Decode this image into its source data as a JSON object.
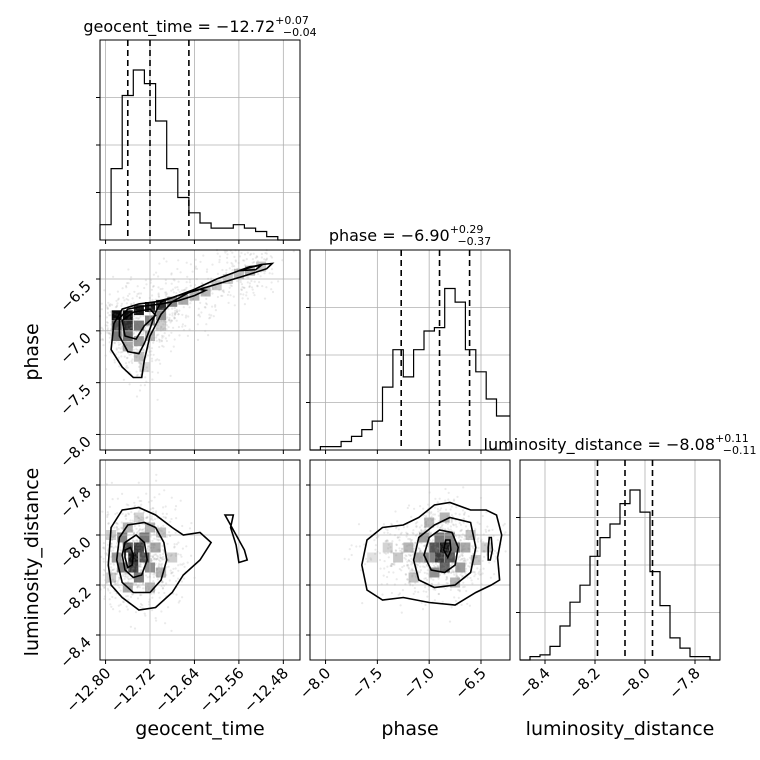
{
  "chart_data": {
    "type": "corner",
    "parameters": [
      "geocent_time",
      "phase",
      "luminosity_distance"
    ],
    "axis_labels": [
      "geocent_time",
      "phase",
      "luminosity_distance"
    ],
    "ranges": {
      "geocent_time": [
        -12.81,
        -12.45
      ],
      "phase": [
        -8.15,
        -6.22
      ],
      "luminosity_distance": [
        -8.5,
        -7.7
      ]
    },
    "ticks": {
      "geocent_time": [
        -12.8,
        -12.72,
        -12.64,
        -12.56,
        -12.48
      ],
      "phase": [
        -8.0,
        -7.5,
        -7.0,
        -6.5
      ],
      "luminosity_distance": [
        -8.4,
        -8.2,
        -8.0,
        -7.8
      ]
    },
    "tick_labels": {
      "geocent_time": [
        "−12.80",
        "−12.72",
        "−12.64",
        "−12.56",
        "−12.48"
      ],
      "phase": [
        "−8.0",
        "−7.5",
        "−7.0",
        "−6.5"
      ],
      "luminosity_distance": [
        "−8.4",
        "−8.2",
        "−8.0",
        "−7.8"
      ]
    },
    "titles": [
      {
        "param": "geocent_time",
        "prefix": "geocent_time = −12.72",
        "plus": "+0.07",
        "minus": "−0.04"
      },
      {
        "param": "phase",
        "prefix": "phase = −6.90",
        "plus": "+0.29",
        "minus": "−0.37"
      },
      {
        "param": "luminosity_distance",
        "prefix": "luminosity_distance = −8.08",
        "plus": "+0.11",
        "minus": "−0.11"
      }
    ],
    "quantiles": {
      "geocent_time": [
        -12.76,
        -12.72,
        -12.65
      ],
      "phase": [
        -7.27,
        -6.9,
        -6.61
      ],
      "luminosity_distance": [
        -8.19,
        -8.08,
        -7.97
      ]
    },
    "histograms": {
      "geocent_time": {
        "edges": [
          -12.81,
          -12.79,
          -12.77,
          -12.75,
          -12.73,
          -12.71,
          -12.69,
          -12.67,
          -12.65,
          -12.63,
          -12.61,
          -12.59,
          -12.57,
          -12.55,
          -12.53,
          -12.51,
          -12.49,
          -12.47,
          -12.45
        ],
        "counts": [
          0.09,
          0.42,
          0.85,
          1.0,
          0.92,
          0.7,
          0.42,
          0.25,
          0.16,
          0.1,
          0.07,
          0.07,
          0.09,
          0.07,
          0.05,
          0.02,
          0.0,
          0.0
        ]
      },
      "phase": {
        "edges": [
          -8.15,
          -8.05,
          -7.95,
          -7.85,
          -7.75,
          -7.65,
          -7.55,
          -7.45,
          -7.35,
          -7.25,
          -7.15,
          -7.05,
          -6.95,
          -6.85,
          -6.75,
          -6.65,
          -6.55,
          -6.45,
          -6.35,
          -6.22
        ],
        "counts": [
          0.0,
          0.02,
          0.02,
          0.05,
          0.08,
          0.12,
          0.17,
          0.37,
          0.59,
          0.43,
          0.59,
          0.7,
          0.72,
          0.95,
          0.87,
          0.59,
          0.46,
          0.3,
          0.2
        ]
      },
      "luminosity_distance": {
        "edges": [
          -8.5,
          -8.46,
          -8.42,
          -8.38,
          -8.34,
          -8.3,
          -8.26,
          -8.22,
          -8.18,
          -8.14,
          -8.1,
          -8.06,
          -8.02,
          -7.98,
          -7.94,
          -7.9,
          -7.86,
          -7.82,
          -7.78,
          -7.74,
          -7.7
        ],
        "counts": [
          0.0,
          0.02,
          0.03,
          0.08,
          0.2,
          0.34,
          0.44,
          0.61,
          0.72,
          0.8,
          0.92,
          1.0,
          0.87,
          0.52,
          0.32,
          0.13,
          0.07,
          0.02,
          0.02,
          0.0
        ]
      }
    },
    "contours": {
      "phase_vs_geocent_time": [
        [
          [
            -12.79,
            -7.18
          ],
          [
            -12.785,
            -6.93
          ],
          [
            -12.77,
            -6.79
          ],
          [
            -12.74,
            -6.74
          ],
          [
            -12.71,
            -6.72
          ],
          [
            -12.68,
            -6.68
          ],
          [
            -12.64,
            -6.6
          ],
          [
            -12.6,
            -6.5
          ],
          [
            -12.56,
            -6.42
          ],
          [
            -12.52,
            -6.36
          ],
          [
            -12.5,
            -6.35
          ],
          [
            -12.51,
            -6.4
          ],
          [
            -12.55,
            -6.47
          ],
          [
            -12.6,
            -6.55
          ],
          [
            -12.65,
            -6.63
          ],
          [
            -12.68,
            -6.72
          ],
          [
            -12.7,
            -6.84
          ],
          [
            -12.72,
            -7.05
          ],
          [
            -12.73,
            -7.28
          ],
          [
            -12.735,
            -7.45
          ],
          [
            -12.75,
            -7.45
          ],
          [
            -12.77,
            -7.35
          ]
        ],
        [
          [
            -12.775,
            -7.05
          ],
          [
            -12.775,
            -6.88
          ],
          [
            -12.76,
            -6.79
          ],
          [
            -12.73,
            -6.76
          ],
          [
            -12.7,
            -6.74
          ],
          [
            -12.67,
            -6.71
          ],
          [
            -12.64,
            -6.66
          ],
          [
            -12.62,
            -6.61
          ],
          [
            -12.63,
            -6.6
          ],
          [
            -12.67,
            -6.66
          ],
          [
            -12.7,
            -6.72
          ],
          [
            -12.71,
            -6.82
          ],
          [
            -12.72,
            -6.98
          ],
          [
            -12.73,
            -7.12
          ],
          [
            -12.74,
            -7.22
          ],
          [
            -12.76,
            -7.2
          ]
        ],
        [
          [
            -12.765,
            -7.05
          ],
          [
            -12.77,
            -6.9
          ],
          [
            -12.75,
            -6.82
          ],
          [
            -12.72,
            -6.79
          ],
          [
            -12.71,
            -6.85
          ],
          [
            -12.73,
            -6.95
          ],
          [
            -12.745,
            -7.08
          ]
        ],
        [
          [
            -12.56,
            -6.42
          ],
          [
            -12.54,
            -6.38
          ],
          [
            -12.52,
            -6.37
          ],
          [
            -12.53,
            -6.41
          ]
        ]
      ],
      "luminosity_distance_vs_geocent_time": [
        [
          [
            -12.795,
            -8.12
          ],
          [
            -12.79,
            -7.97
          ],
          [
            -12.77,
            -7.9
          ],
          [
            -12.74,
            -7.89
          ],
          [
            -12.71,
            -7.92
          ],
          [
            -12.68,
            -7.97
          ],
          [
            -12.66,
            -8.0
          ],
          [
            -12.63,
            -7.99
          ],
          [
            -12.61,
            -8.03
          ],
          [
            -12.63,
            -8.1
          ],
          [
            -12.66,
            -8.16
          ],
          [
            -12.68,
            -8.23
          ],
          [
            -12.71,
            -8.29
          ],
          [
            -12.74,
            -8.3
          ],
          [
            -12.77,
            -8.25
          ],
          [
            -12.79,
            -8.2
          ]
        ],
        [
          [
            -12.78,
            -8.1
          ],
          [
            -12.775,
            -8.01
          ],
          [
            -12.76,
            -7.96
          ],
          [
            -12.73,
            -7.95
          ],
          [
            -12.71,
            -7.97
          ],
          [
            -12.695,
            -8.03
          ],
          [
            -12.69,
            -8.1
          ],
          [
            -12.7,
            -8.18
          ],
          [
            -12.72,
            -8.23
          ],
          [
            -12.75,
            -8.23
          ],
          [
            -12.77,
            -8.19
          ]
        ],
        [
          [
            -12.77,
            -8.08
          ],
          [
            -12.765,
            -8.03
          ],
          [
            -12.745,
            -8.0
          ],
          [
            -12.73,
            -8.03
          ],
          [
            -12.725,
            -8.1
          ],
          [
            -12.735,
            -8.16
          ],
          [
            -12.75,
            -8.17
          ],
          [
            -12.765,
            -8.14
          ]
        ],
        [
          [
            -12.765,
            -8.09
          ],
          [
            -12.765,
            -8.06
          ],
          [
            -12.755,
            -8.05
          ],
          [
            -12.75,
            -8.08
          ],
          [
            -12.752,
            -8.12
          ],
          [
            -12.76,
            -8.13
          ]
        ],
        [
          [
            -12.585,
            -7.92
          ],
          [
            -12.565,
            -8.0
          ],
          [
            -12.55,
            -8.06
          ],
          [
            -12.545,
            -8.1
          ],
          [
            -12.56,
            -8.11
          ],
          [
            -12.565,
            -8.04
          ],
          [
            -12.575,
            -7.97
          ],
          [
            -12.57,
            -7.92
          ]
        ]
      ],
      "luminosity_distance_vs_phase": [
        [
          [
            -7.65,
            -8.12
          ],
          [
            -7.6,
            -8.02
          ],
          [
            -7.45,
            -7.97
          ],
          [
            -7.25,
            -7.96
          ],
          [
            -7.1,
            -7.93
          ],
          [
            -6.95,
            -7.88
          ],
          [
            -6.8,
            -7.87
          ],
          [
            -6.6,
            -7.9
          ],
          [
            -6.45,
            -7.9
          ],
          [
            -6.35,
            -7.92
          ],
          [
            -6.3,
            -8.0
          ],
          [
            -6.34,
            -8.09
          ],
          [
            -6.32,
            -8.18
          ],
          [
            -6.4,
            -8.2
          ],
          [
            -6.55,
            -8.23
          ],
          [
            -6.75,
            -8.28
          ],
          [
            -7.0,
            -8.27
          ],
          [
            -7.25,
            -8.25
          ],
          [
            -7.45,
            -8.26
          ],
          [
            -7.6,
            -8.22
          ]
        ],
        [
          [
            -7.15,
            -8.1
          ],
          [
            -7.1,
            -8.01
          ],
          [
            -6.95,
            -7.96
          ],
          [
            -6.8,
            -7.93
          ],
          [
            -6.6,
            -7.95
          ],
          [
            -6.55,
            -8.05
          ],
          [
            -6.6,
            -8.15
          ],
          [
            -6.75,
            -8.2
          ],
          [
            -6.95,
            -8.21
          ],
          [
            -7.1,
            -8.18
          ]
        ],
        [
          [
            -7.05,
            -8.08
          ],
          [
            -7.0,
            -8.01
          ],
          [
            -6.9,
            -7.98
          ],
          [
            -6.78,
            -7.99
          ],
          [
            -6.72,
            -8.05
          ],
          [
            -6.75,
            -8.12
          ],
          [
            -6.85,
            -8.15
          ],
          [
            -6.98,
            -8.14
          ]
        ],
        [
          [
            -6.86,
            -8.06
          ],
          [
            -6.84,
            -8.02
          ],
          [
            -6.8,
            -8.02
          ],
          [
            -6.79,
            -8.06
          ],
          [
            -6.82,
            -8.09
          ]
        ],
        [
          [
            -6.43,
            -8.05
          ],
          [
            -6.42,
            -8.01
          ],
          [
            -6.4,
            -8.01
          ],
          [
            -6.39,
            -8.06
          ],
          [
            -6.41,
            -8.1
          ],
          [
            -6.43,
            -8.1
          ]
        ]
      ]
    },
    "density_cells": {
      "phase_vs_geocent_time": [
        [
          -12.78,
          -6.85,
          1.0
        ],
        [
          -12.76,
          -6.85,
          1.0
        ],
        [
          -12.74,
          -6.8,
          0.95
        ],
        [
          -12.72,
          -6.77,
          0.95
        ],
        [
          -12.7,
          -6.75,
          0.85
        ],
        [
          -12.78,
          -6.95,
          0.7
        ],
        [
          -12.76,
          -6.95,
          0.85
        ],
        [
          -12.74,
          -6.95,
          0.55
        ],
        [
          -12.72,
          -6.9,
          0.5
        ],
        [
          -12.7,
          -6.85,
          0.45
        ],
        [
          -12.78,
          -7.05,
          0.55
        ],
        [
          -12.76,
          -7.05,
          0.6
        ],
        [
          -12.74,
          -7.1,
          0.4
        ],
        [
          -12.72,
          -7.05,
          0.3
        ],
        [
          -12.68,
          -6.72,
          0.5
        ],
        [
          -12.76,
          -7.15,
          0.35
        ],
        [
          -12.74,
          -7.25,
          0.25
        ],
        [
          -12.66,
          -6.7,
          0.35
        ],
        [
          -12.64,
          -6.66,
          0.3
        ],
        [
          -12.62,
          -6.62,
          0.3
        ],
        [
          -12.6,
          -6.56,
          0.22
        ],
        [
          -12.58,
          -6.5,
          0.2
        ],
        [
          -12.56,
          -6.45,
          0.25
        ],
        [
          -12.54,
          -6.42,
          0.3
        ],
        [
          -12.52,
          -6.38,
          0.22
        ],
        [
          -12.7,
          -6.95,
          0.2
        ],
        [
          -12.73,
          -7.35,
          0.15
        ]
      ],
      "luminosity_distance_vs_geocent_time": [
        [
          -12.76,
          -8.05,
          0.75
        ],
        [
          -12.75,
          -8.09,
          0.95
        ],
        [
          -12.75,
          -8.13,
          0.8
        ],
        [
          -12.74,
          -8.05,
          0.8
        ],
        [
          -12.73,
          -8.09,
          0.7
        ],
        [
          -12.73,
          -8.01,
          0.55
        ],
        [
          -12.77,
          -8.01,
          0.5
        ],
        [
          -12.77,
          -8.13,
          0.55
        ],
        [
          -12.74,
          -8.17,
          0.55
        ],
        [
          -12.72,
          -8.13,
          0.45
        ],
        [
          -12.71,
          -8.05,
          0.35
        ],
        [
          -12.72,
          -7.97,
          0.3
        ],
        [
          -12.76,
          -7.97,
          0.3
        ],
        [
          -12.78,
          -8.09,
          0.4
        ],
        [
          -12.76,
          -8.21,
          0.35
        ],
        [
          -12.72,
          -8.21,
          0.3
        ],
        [
          -12.7,
          -8.15,
          0.3
        ],
        [
          -12.7,
          -7.99,
          0.25
        ],
        [
          -12.79,
          -8.0,
          0.2
        ],
        [
          -12.79,
          -8.17,
          0.2
        ],
        [
          -12.68,
          -8.09,
          0.2
        ],
        [
          -12.74,
          -7.93,
          0.18
        ]
      ],
      "luminosity_distance_vs_phase": [
        [
          -6.85,
          -8.05,
          0.95
        ],
        [
          -6.9,
          -8.09,
          0.8
        ],
        [
          -6.95,
          -8.05,
          0.7
        ],
        [
          -6.8,
          -8.09,
          0.7
        ],
        [
          -6.85,
          -8.13,
          0.65
        ],
        [
          -7.0,
          -8.09,
          0.5
        ],
        [
          -6.75,
          -8.05,
          0.55
        ],
        [
          -6.9,
          -8.01,
          0.55
        ],
        [
          -6.8,
          -8.01,
          0.5
        ],
        [
          -7.05,
          -8.01,
          0.4
        ],
        [
          -7.1,
          -8.09,
          0.35
        ],
        [
          -6.7,
          -8.13,
          0.4
        ],
        [
          -6.95,
          -8.15,
          0.45
        ],
        [
          -7.2,
          -8.05,
          0.3
        ],
        [
          -6.65,
          -8.05,
          0.35
        ],
        [
          -6.6,
          -8.0,
          0.25
        ],
        [
          -7.3,
          -8.09,
          0.22
        ],
        [
          -7.4,
          -8.05,
          0.18
        ],
        [
          -6.55,
          -8.1,
          0.25
        ],
        [
          -6.45,
          -8.05,
          0.2
        ],
        [
          -7.0,
          -7.95,
          0.3
        ],
        [
          -6.85,
          -7.93,
          0.3
        ],
        [
          -6.75,
          -8.19,
          0.3
        ],
        [
          -7.15,
          -8.17,
          0.25
        ],
        [
          -7.55,
          -8.09,
          0.12
        ]
      ]
    }
  }
}
